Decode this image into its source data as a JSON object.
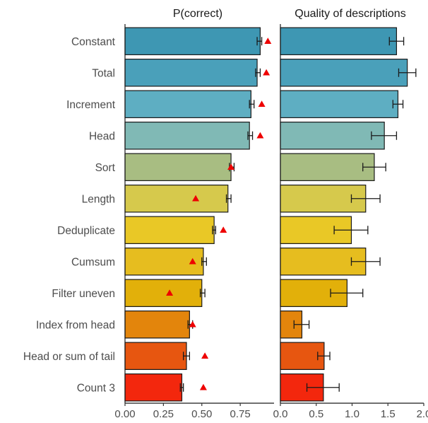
{
  "chart_data": {
    "type": "bar",
    "categories": [
      "Constant",
      "Total",
      "Increment",
      "Head",
      "Sort",
      "Length",
      "Deduplicate",
      "Cumsum",
      "Filter uneven",
      "Index from head",
      "Head or sum of tail",
      "Count 3"
    ],
    "colors": [
      "#3e97b3",
      "#4aa0ba",
      "#5eaec2",
      "#80b9b5",
      "#a8bd82",
      "#d6c94c",
      "#e9c826",
      "#e6bd1f",
      "#e2b00a",
      "#e3850c",
      "#e75610",
      "#f3270d"
    ],
    "panels": [
      {
        "title": "P(correct)",
        "xlim": [
          0,
          0.97
        ],
        "ticks": [
          0,
          0.25,
          0.5,
          0.75
        ],
        "tick_labels": [
          "0.00",
          "0.25",
          "0.50",
          "0.75"
        ],
        "values": [
          0.88,
          0.86,
          0.82,
          0.81,
          0.69,
          0.67,
          0.58,
          0.51,
          0.5,
          0.42,
          0.4,
          0.37
        ],
        "error_low": [
          0.86,
          0.85,
          0.81,
          0.8,
          0.68,
          0.66,
          0.57,
          0.5,
          0.49,
          0.41,
          0.38,
          0.36
        ],
        "error_high": [
          0.89,
          0.88,
          0.84,
          0.83,
          0.71,
          0.69,
          0.59,
          0.53,
          0.52,
          0.44,
          0.42,
          0.38
        ],
        "triangle_values": [
          0.93,
          0.92,
          0.89,
          0.88,
          0.69,
          0.46,
          0.64,
          0.44,
          0.29,
          0.44,
          0.52,
          0.51
        ]
      },
      {
        "title": "Quality of descriptions",
        "xlim": [
          0,
          2.0
        ],
        "ticks": [
          0,
          0.5,
          1.0,
          1.5,
          2.0
        ],
        "tick_labels": [
          "0.0",
          "0.5",
          "1.0",
          "1.5",
          "2.0"
        ],
        "values": [
          1.62,
          1.77,
          1.64,
          1.45,
          1.31,
          1.19,
          0.99,
          1.19,
          0.93,
          0.3,
          0.61,
          0.6
        ],
        "error_low": [
          1.52,
          1.65,
          1.57,
          1.27,
          1.15,
          0.99,
          0.75,
          0.99,
          0.7,
          0.19,
          0.52,
          0.37
        ],
        "error_high": [
          1.72,
          1.89,
          1.71,
          1.62,
          1.47,
          1.39,
          1.22,
          1.39,
          1.15,
          0.4,
          0.69,
          0.82
        ]
      }
    ]
  }
}
